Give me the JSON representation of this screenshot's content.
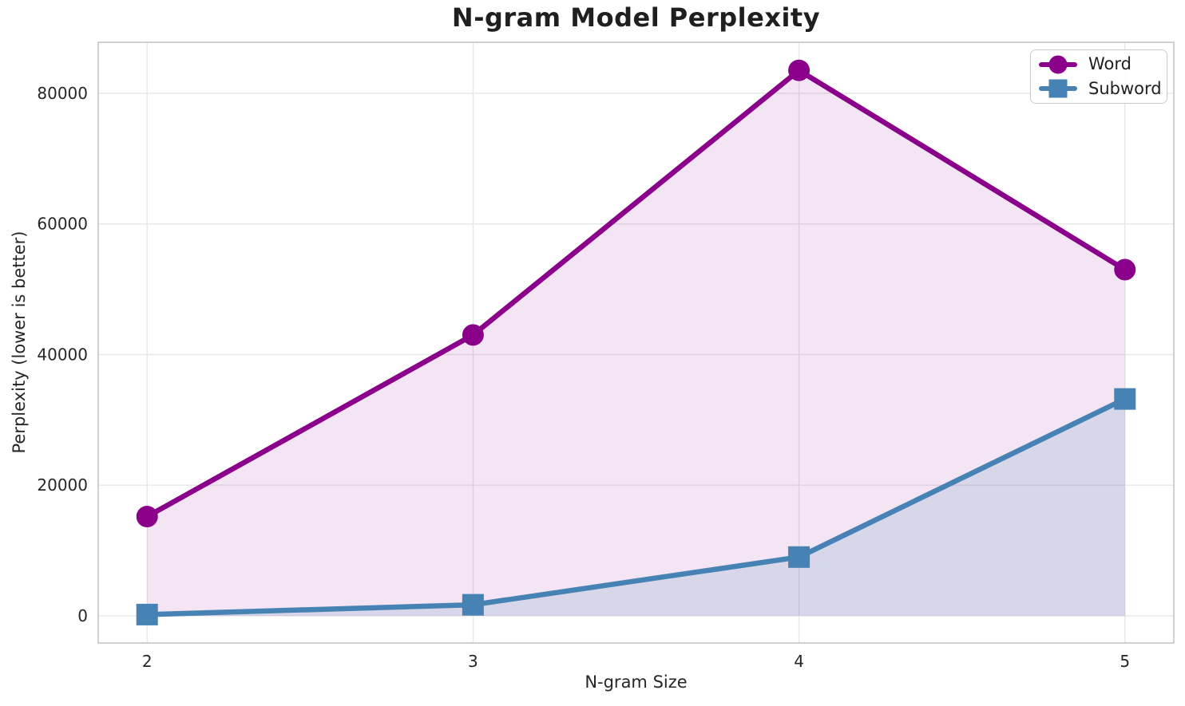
{
  "chart_data": {
    "type": "line",
    "title": "N-gram Model Perplexity",
    "xlabel": "N-gram Size",
    "ylabel": "Perplexity (lower is better)",
    "x": [
      2,
      3,
      4,
      5
    ],
    "series": [
      {
        "name": "Word",
        "values": [
          15200,
          43000,
          83500,
          53000
        ],
        "color": "#8B008B",
        "marker": "circle",
        "fill_alpha": 0.1
      },
      {
        "name": "Subword",
        "values": [
          200,
          1700,
          9000,
          33200
        ],
        "color": "#4682B4",
        "marker": "square",
        "fill_alpha": 0.15
      }
    ],
    "xticks": [
      2,
      3,
      4,
      5
    ],
    "yticks": [
      0,
      20000,
      40000,
      60000,
      80000
    ],
    "xlim": [
      1.85,
      5.15
    ],
    "ylim": [
      -4150,
      87800
    ],
    "grid": true,
    "fill_to_zero": true,
    "legend_position": "upper right",
    "colors": {
      "grid": "#e7e7e7",
      "spine": "#cbcbcb",
      "tick_label": "#262626",
      "title": "#1f1f1f"
    }
  }
}
